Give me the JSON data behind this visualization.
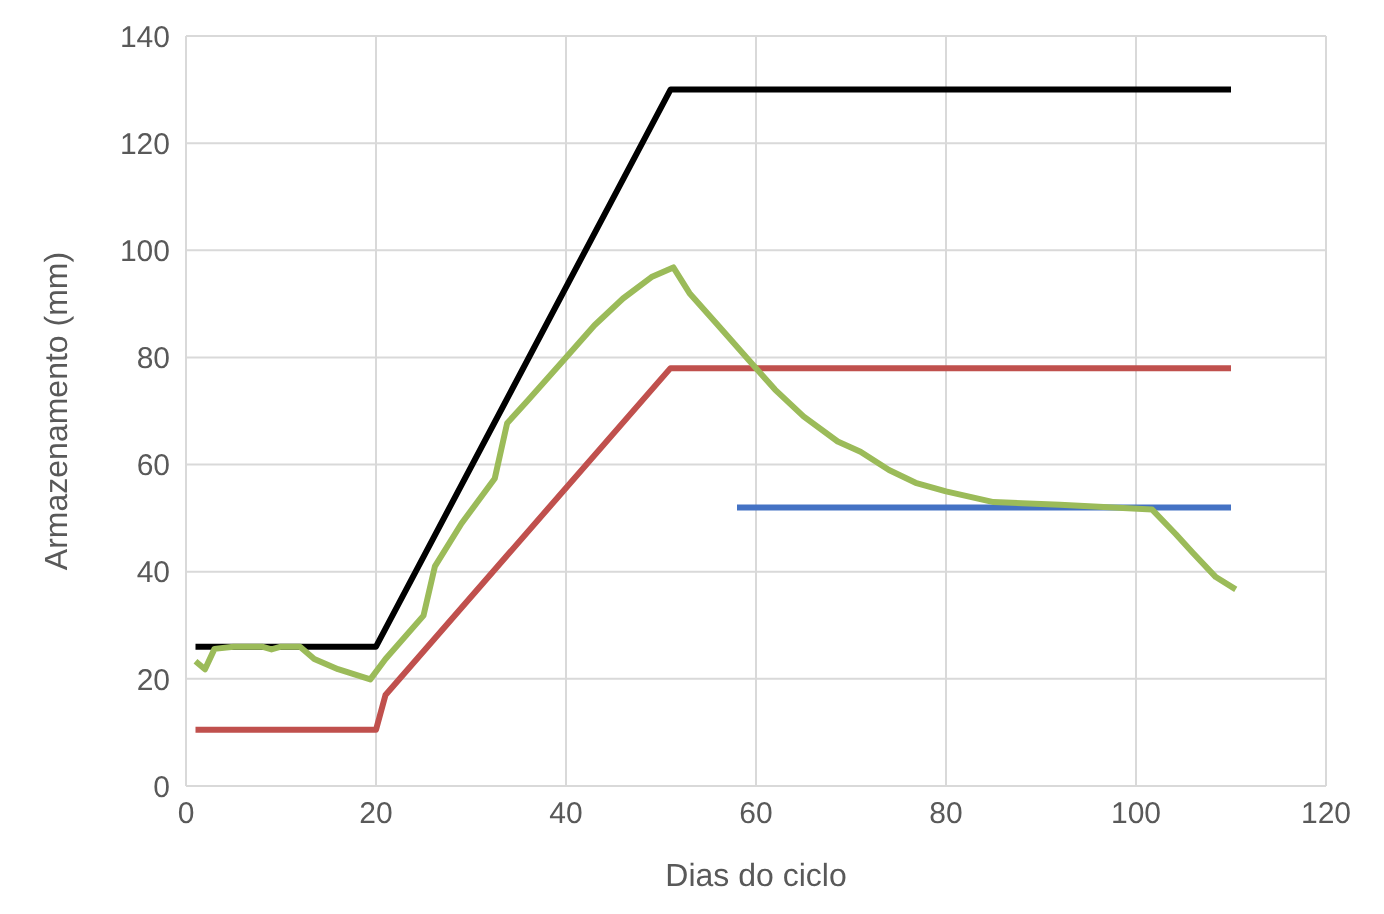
{
  "chart_data": {
    "type": "line",
    "xlabel": "Dias do ciclo",
    "ylabel": "Armazenamento  (mm)",
    "xlim": [
      0,
      120
    ],
    "xticks": [
      0,
      20,
      40,
      60,
      80,
      100,
      120
    ],
    "ylim": [
      0,
      140
    ],
    "yticks": [
      0,
      20,
      40,
      60,
      80,
      100,
      120,
      140
    ],
    "grid": true,
    "legend": false,
    "marker": "none",
    "line_style": "solid",
    "series": [
      {
        "color": "#000000",
        "x": [
          1,
          20,
          51,
          110
        ],
        "values": [
          26,
          26,
          130,
          130
        ]
      },
      {
        "color": "#c0504d",
        "x": [
          1,
          20,
          21,
          51,
          110
        ],
        "values": [
          10.5,
          10.5,
          17,
          78,
          78
        ]
      },
      {
        "color": "#4472c4",
        "x": [
          58,
          110
        ],
        "values": [
          52,
          52
        ]
      },
      {
        "color": "#9bbb59",
        "x": [
          1,
          2,
          3,
          5,
          8,
          9,
          10,
          12,
          13.5,
          16,
          19.4,
          21,
          25,
          26.2,
          29,
          32.5,
          33.8,
          36,
          40,
          43,
          46,
          49,
          51.3,
          53,
          56,
          58,
          60,
          62,
          65,
          68.6,
          71,
          74,
          76.8,
          80,
          85,
          92,
          101.7,
          104.2,
          106,
          108.4,
          110.5
        ],
        "values": [
          23.3,
          21.8,
          25.6,
          26,
          26,
          25.5,
          26,
          26,
          23.7,
          21.8,
          19.9,
          23.7,
          31.8,
          41,
          49,
          57.4,
          67.7,
          72,
          80,
          86,
          91,
          95,
          96.8,
          92,
          86,
          82,
          78,
          74,
          69,
          64.3,
          62.4,
          59,
          56.6,
          55,
          53,
          52.5,
          51.6,
          47,
          43.5,
          39,
          36.7
        ]
      }
    ]
  }
}
